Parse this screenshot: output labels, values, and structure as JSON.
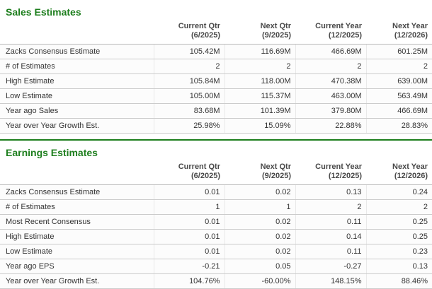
{
  "accent_green": "#1d7e1d",
  "sales": {
    "title": "Sales Estimates",
    "columns": [
      {
        "line1": "Current Qtr",
        "line2": "(6/2025)"
      },
      {
        "line1": "Next Qtr",
        "line2": "(9/2025)"
      },
      {
        "line1": "Current Year",
        "line2": "(12/2025)"
      },
      {
        "line1": "Next Year",
        "line2": "(12/2026)"
      }
    ],
    "rows": [
      {
        "label": "Zacks Consensus Estimate",
        "values": [
          "105.42M",
          "116.69M",
          "466.69M",
          "601.25M"
        ]
      },
      {
        "label": "# of Estimates",
        "values": [
          "2",
          "2",
          "2",
          "2"
        ]
      },
      {
        "label": "High Estimate",
        "values": [
          "105.84M",
          "118.00M",
          "470.38M",
          "639.00M"
        ]
      },
      {
        "label": "Low Estimate",
        "values": [
          "105.00M",
          "115.37M",
          "463.00M",
          "563.49M"
        ]
      },
      {
        "label": "Year ago Sales",
        "values": [
          "83.68M",
          "101.39M",
          "379.80M",
          "466.69M"
        ]
      },
      {
        "label": "Year over Year Growth Est.",
        "values": [
          "25.98%",
          "15.09%",
          "22.88%",
          "28.83%"
        ]
      }
    ]
  },
  "earnings": {
    "title": "Earnings Estimates",
    "columns": [
      {
        "line1": "Current Qtr",
        "line2": "(6/2025)"
      },
      {
        "line1": "Next Qtr",
        "line2": "(9/2025)"
      },
      {
        "line1": "Current Year",
        "line2": "(12/2025)"
      },
      {
        "line1": "Next Year",
        "line2": "(12/2026)"
      }
    ],
    "rows": [
      {
        "label": "Zacks Consensus Estimate",
        "values": [
          "0.01",
          "0.02",
          "0.13",
          "0.24"
        ]
      },
      {
        "label": "# of Estimates",
        "values": [
          "1",
          "1",
          "2",
          "2"
        ]
      },
      {
        "label": "Most Recent Consensus",
        "values": [
          "0.01",
          "0.02",
          "0.11",
          "0.25"
        ]
      },
      {
        "label": "High Estimate",
        "values": [
          "0.01",
          "0.02",
          "0.14",
          "0.25"
        ]
      },
      {
        "label": "Low Estimate",
        "values": [
          "0.01",
          "0.02",
          "0.11",
          "0.23"
        ]
      },
      {
        "label": "Year ago EPS",
        "values": [
          "-0.21",
          "0.05",
          "-0.27",
          "0.13"
        ]
      },
      {
        "label": "Year over Year Growth Est.",
        "values": [
          "104.76%",
          "-60.00%",
          "148.15%",
          "88.46%"
        ]
      }
    ]
  }
}
